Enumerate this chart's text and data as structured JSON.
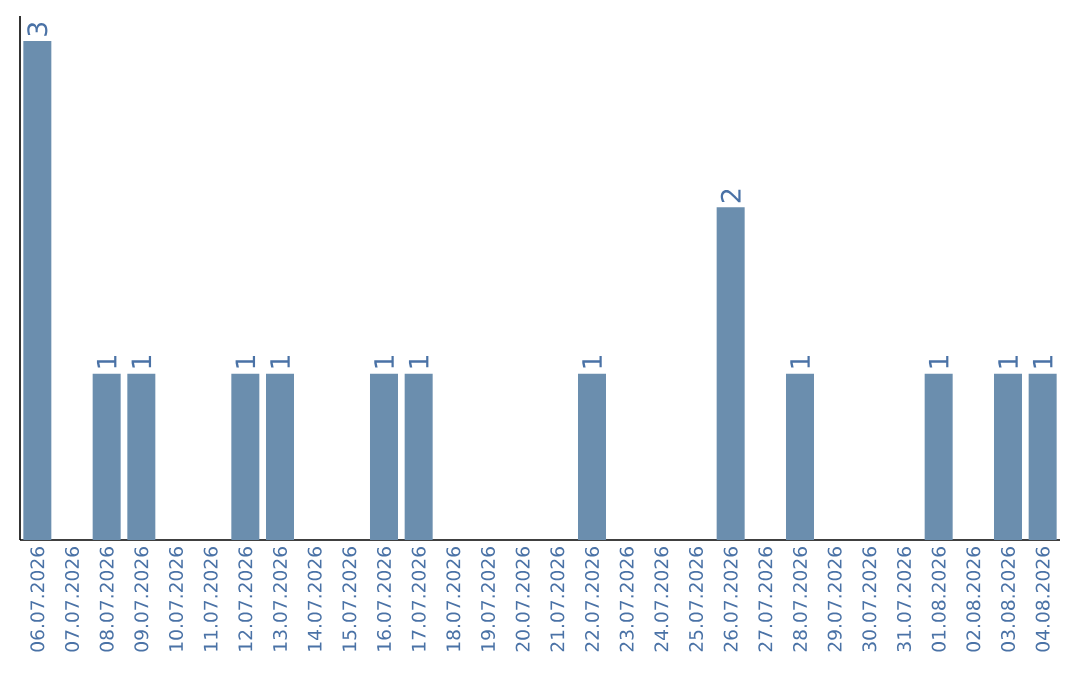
{
  "chart_data": {
    "type": "bar",
    "categories": [
      "06.07.2026",
      "07.07.2026",
      "08.07.2026",
      "09.07.2026",
      "10.07.2026",
      "11.07.2026",
      "12.07.2026",
      "13.07.2026",
      "14.07.2026",
      "15.07.2026",
      "16.07.2026",
      "17.07.2026",
      "18.07.2026",
      "19.07.2026",
      "20.07.2026",
      "21.07.2026",
      "22.07.2026",
      "23.07.2026",
      "24.07.2026",
      "25.07.2026",
      "26.07.2026",
      "27.07.2026",
      "28.07.2026",
      "29.07.2026",
      "30.07.2026",
      "31.07.2026",
      "01.08.2026",
      "02.08.2026",
      "03.08.2026",
      "04.08.2026"
    ],
    "values": [
      3,
      0,
      1,
      1,
      0,
      0,
      1,
      1,
      0,
      0,
      1,
      1,
      0,
      0,
      0,
      0,
      1,
      0,
      0,
      0,
      2,
      0,
      1,
      0,
      0,
      0,
      1,
      0,
      1,
      1
    ],
    "value_labels": [
      "3",
      null,
      "1",
      "1",
      null,
      null,
      "1",
      "1",
      null,
      null,
      "1",
      "1",
      null,
      null,
      null,
      null,
      "1",
      null,
      null,
      null,
      "2",
      null,
      "1",
      null,
      null,
      null,
      "1",
      null,
      "1",
      "1"
    ],
    "color": "#6b8eae",
    "ylim": [
      0,
      3.15
    ]
  }
}
